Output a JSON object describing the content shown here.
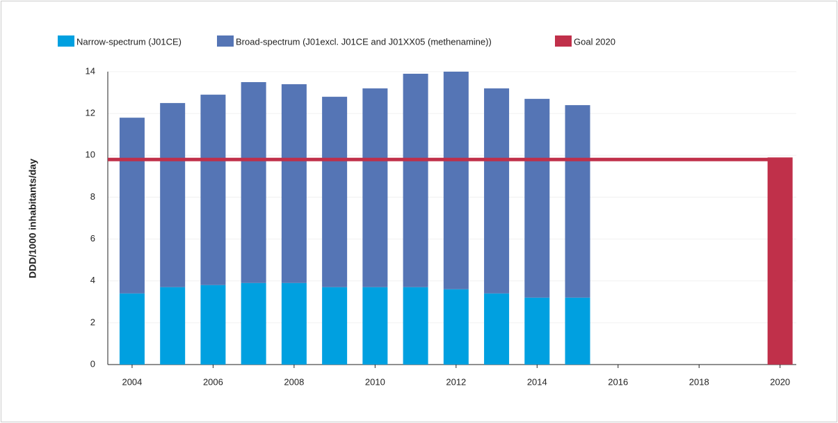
{
  "chart_data": {
    "type": "stacked_bar",
    "y_label": "DDD/1000 inhabitants/day",
    "x": [
      2004,
      2005,
      2006,
      2007,
      2008,
      2009,
      2010,
      2011,
      2012,
      2013,
      2014,
      2015,
      2016,
      2017,
      2018,
      2019,
      2020
    ],
    "series": [
      {
        "name": "Narrow-spectrum (J01CE)",
        "color": "#00a0e0",
        "values": [
          3.4,
          3.7,
          3.8,
          3.9,
          3.9,
          3.7,
          3.7,
          3.7,
          3.6,
          3.4,
          3.2,
          3.2,
          null,
          null,
          null,
          null,
          null
        ]
      },
      {
        "name": "Broad-spectrum (J01excl. J01CE and J01XX05 (methenamine))",
        "color": "#5575b5",
        "values": [
          8.4,
          8.8,
          9.1,
          9.6,
          9.5,
          9.1,
          9.5,
          10.2,
          10.4,
          9.8,
          9.5,
          9.2,
          null,
          null,
          null,
          null,
          null
        ]
      },
      {
        "name": "Goal 2020",
        "color": "#c0304a",
        "values": [
          null,
          null,
          null,
          null,
          null,
          null,
          null,
          null,
          null,
          null,
          null,
          null,
          null,
          null,
          null,
          null,
          9.9
        ]
      }
    ],
    "reference_line": 9.8,
    "reference_color": "#c0304a",
    "xlim": [
      2003.4,
      2020.4
    ],
    "xticks": [
      2004,
      2006,
      2008,
      2010,
      2012,
      2014,
      2016,
      2018,
      2020
    ],
    "ylim": [
      0,
      14
    ],
    "yticks": [
      0,
      2,
      4,
      6,
      8,
      10,
      12,
      14
    ],
    "grid": true
  }
}
